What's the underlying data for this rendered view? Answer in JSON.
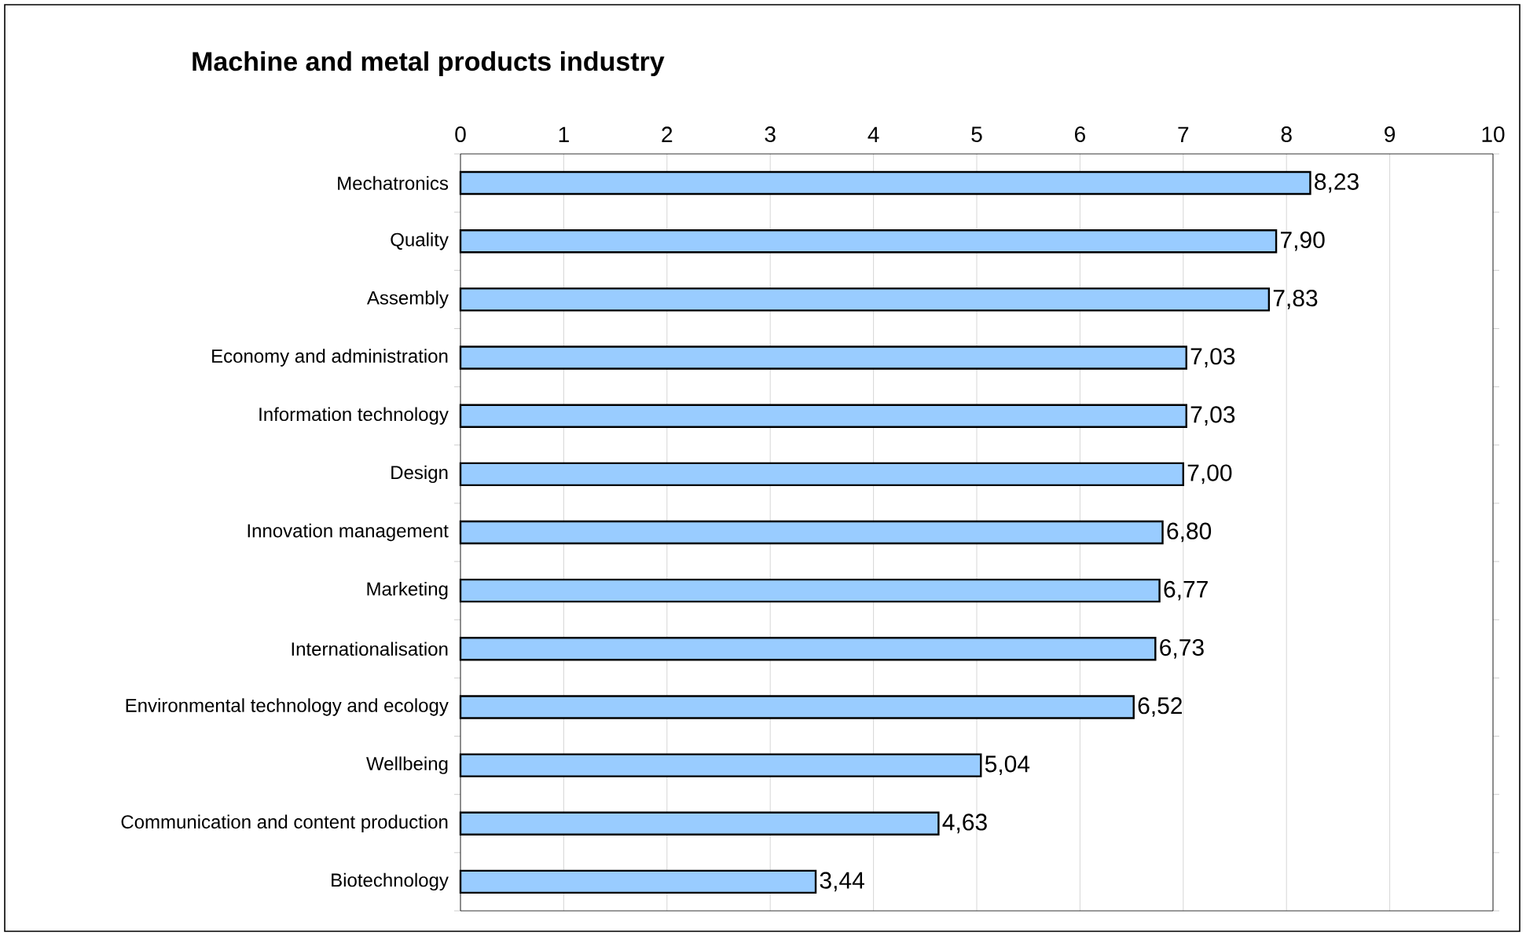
{
  "chart_data": {
    "type": "bar",
    "orientation": "horizontal",
    "title": "Machine and metal products industry",
    "categories": [
      "Mechatronics",
      "Quality",
      "Assembly",
      "Economy and administration",
      "Information technology",
      "Design",
      "Innovation management",
      "Marketing",
      "Internationalisation",
      "Environmental technology and ecology",
      "Wellbeing",
      "Communication and content production",
      "Biotechnology"
    ],
    "values": [
      8.23,
      7.9,
      7.83,
      7.03,
      7.03,
      7.0,
      6.8,
      6.77,
      6.73,
      6.52,
      5.04,
      4.63,
      3.44
    ],
    "value_labels": [
      "8,23",
      "7,90",
      "7,83",
      "7,03",
      "7,03",
      "7,00",
      "6,80",
      "6,77",
      "6,73",
      "6,52",
      "5,04",
      "4,63",
      "3,44"
    ],
    "color": "#99ccff",
    "xlim": [
      0,
      10
    ],
    "xticks": [
      0,
      1,
      2,
      3,
      4,
      5,
      6,
      7,
      8,
      9,
      10
    ],
    "grid": "x"
  }
}
